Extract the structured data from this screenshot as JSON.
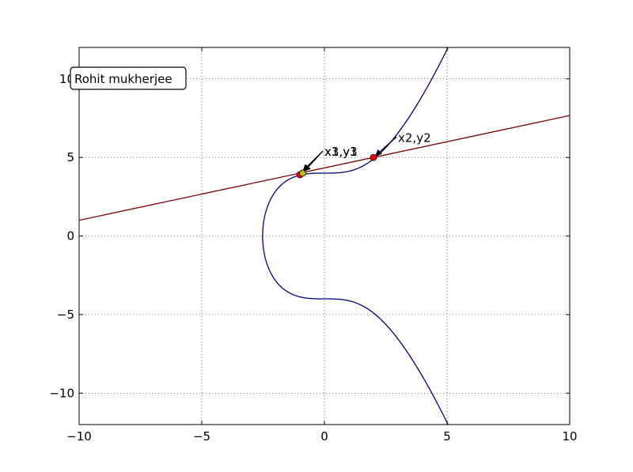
{
  "chart_data": {
    "type": "line",
    "title": "",
    "xlabel": "",
    "ylabel": "",
    "xlim": [
      -10,
      10
    ],
    "ylim": [
      -12,
      12
    ],
    "grid": true,
    "x_ticks": [
      -10,
      -5,
      0,
      5,
      10
    ],
    "y_ticks": [
      -10,
      -5,
      0,
      5,
      10
    ],
    "x_tick_labels": [
      "−10",
      "−5",
      "0",
      "5",
      "10"
    ],
    "y_tick_labels": [
      "−10",
      "−5",
      "0",
      "5",
      "10"
    ],
    "curve": {
      "equation": "y^2 = x^3 + 16",
      "a": 0,
      "b": 16,
      "color": "#000080"
    },
    "secant_line": {
      "slope": 0.3333,
      "intercept": 4.3333,
      "color": "#800000"
    },
    "points": [
      {
        "x": -1.0,
        "y": 3.9,
        "color": "#ff0000"
      },
      {
        "x": -0.89,
        "y": 4.0,
        "color": "#bfbf00"
      },
      {
        "x": 2.0,
        "y": 5.0,
        "color": "#ff0000"
      }
    ],
    "annotations": [
      {
        "text": "x1,y1",
        "target": [
          -0.95,
          4.05
        ],
        "text_pos": [
          0.0,
          5.1
        ]
      },
      {
        "text": "x3,y3",
        "target": [
          -0.89,
          4.0
        ],
        "text_pos": [
          0.0,
          5.1
        ]
      },
      {
        "text": "x2,y2",
        "target": [
          2.0,
          5.0
        ],
        "text_pos": [
          3.0,
          6.0
        ]
      }
    ],
    "text_box": {
      "text": "Rohit mukherjee",
      "location": "upper-left"
    }
  }
}
